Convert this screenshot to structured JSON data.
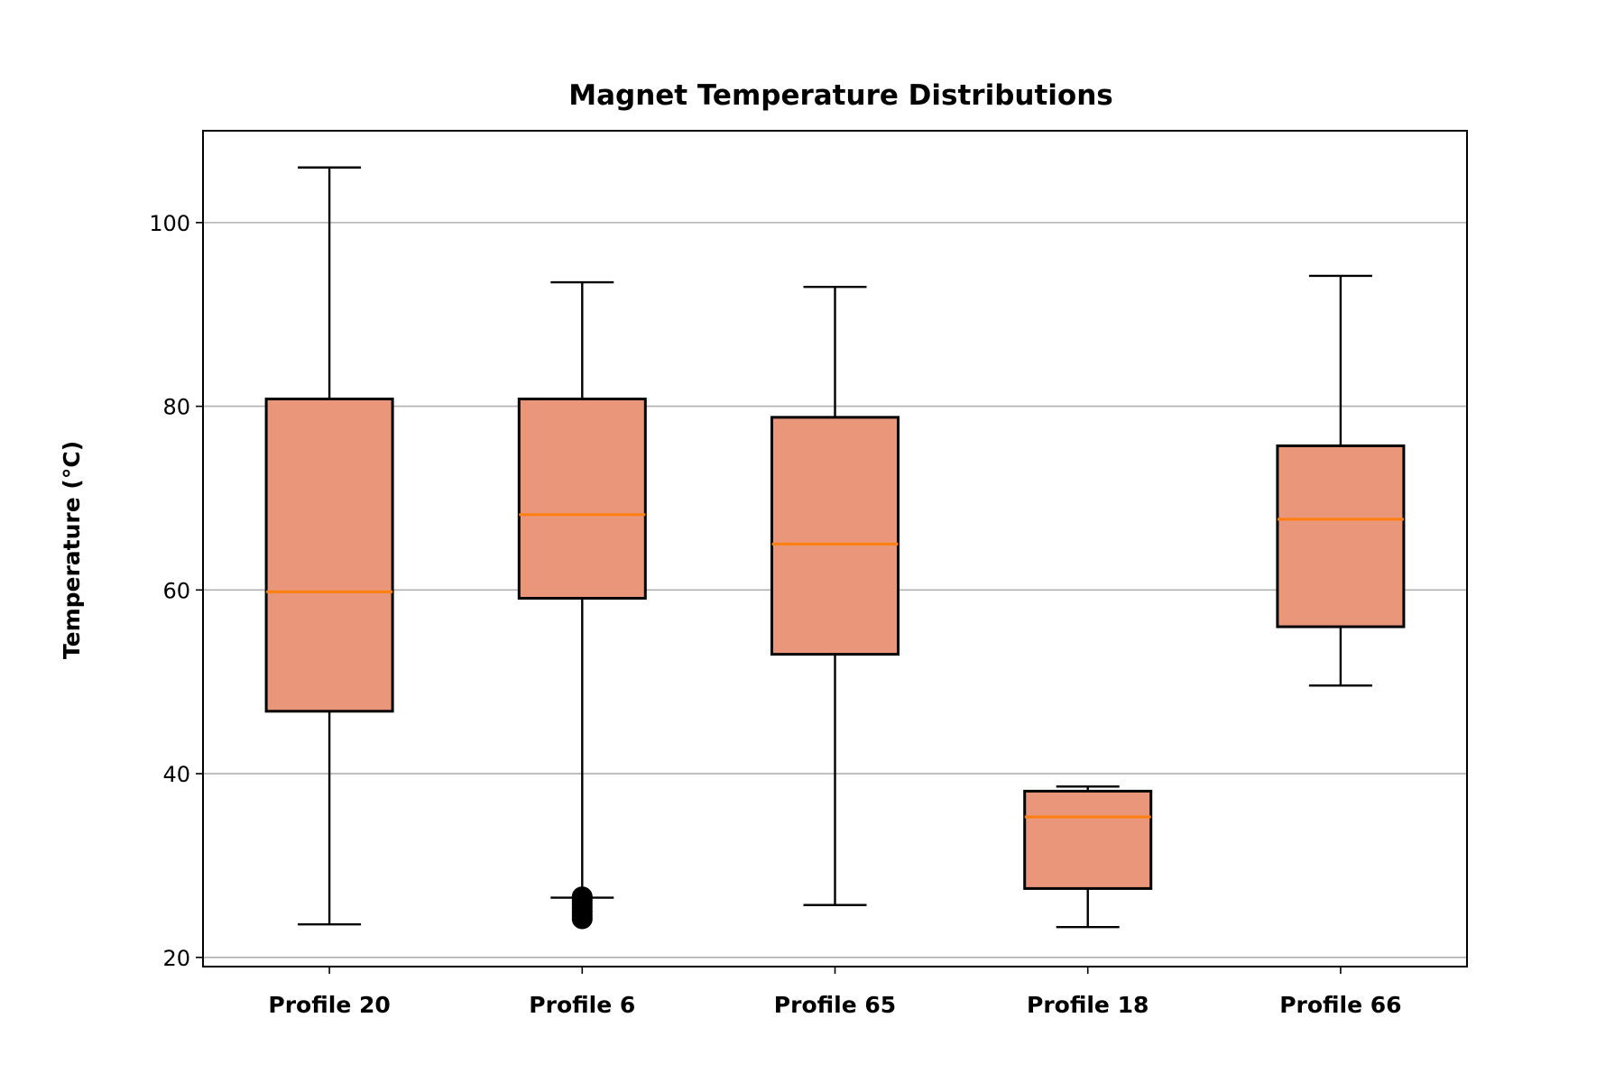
{
  "chart_data": {
    "type": "box",
    "title": "Magnet Temperature Distributions",
    "xlabel": "",
    "ylabel": "Temperature (°C)",
    "ylim": [
      19,
      110
    ],
    "yticks": [
      20,
      40,
      60,
      80,
      100
    ],
    "grid": "horizontal",
    "colors": {
      "box_fill": "#E9967A",
      "median": "#FF7F0E",
      "edge": "#000000",
      "grid": "#b0b0b0"
    },
    "categories": [
      "Profile 20",
      "Profile 6",
      "Profile 65",
      "Profile 18",
      "Profile 66"
    ],
    "boxes": [
      {
        "name": "Profile 20",
        "whisker_low": 23.6,
        "q1": 46.8,
        "median": 59.8,
        "q3": 80.8,
        "whisker_high": 106.0,
        "outliers": []
      },
      {
        "name": "Profile 6",
        "whisker_low": 26.5,
        "q1": 59.1,
        "median": 68.2,
        "q3": 80.8,
        "whisker_high": 93.5,
        "outliers": [
          26.6,
          26.2,
          25.8,
          25.4,
          25.0,
          24.6,
          24.2
        ]
      },
      {
        "name": "Profile 65",
        "whisker_low": 25.7,
        "q1": 53.0,
        "median": 65.0,
        "q3": 78.8,
        "whisker_high": 93.0,
        "outliers": []
      },
      {
        "name": "Profile 18",
        "whisker_low": 23.3,
        "q1": 27.5,
        "median": 35.3,
        "q3": 38.1,
        "whisker_high": 38.6,
        "outliers": []
      },
      {
        "name": "Profile 66",
        "whisker_low": 49.6,
        "q1": 56.0,
        "median": 67.7,
        "q3": 75.7,
        "whisker_high": 94.2,
        "outliers": []
      }
    ]
  }
}
